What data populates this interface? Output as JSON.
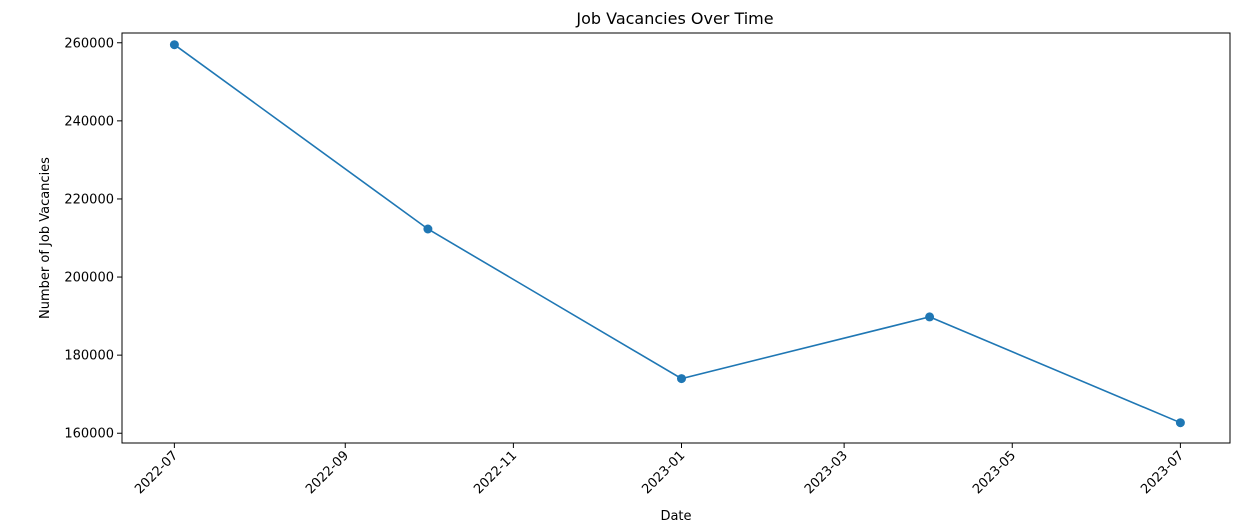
{
  "chart_data": {
    "type": "line",
    "title": "Job Vacancies Over Time",
    "xlabel": "Date",
    "ylabel": "Number of Job Vacancies",
    "x_ticks": [
      "2022-07",
      "2022-09",
      "2022-11",
      "2023-01",
      "2023-03",
      "2023-05",
      "2023-07"
    ],
    "y_ticks": [
      "160000",
      "180000",
      "200000",
      "220000",
      "240000",
      "260000"
    ],
    "xlim": [
      "2022-06-12",
      "2023-07-19"
    ],
    "ylim": [
      157500,
      262500
    ],
    "grid": false,
    "series": [
      {
        "color": "#1f77b4",
        "marker": "circle",
        "x": [
          "2022-07-01",
          "2022-10-01",
          "2023-01-01",
          "2023-04-01",
          "2023-07-01"
        ],
        "values": [
          259500,
          212300,
          174000,
          189800,
          162700
        ]
      }
    ]
  }
}
